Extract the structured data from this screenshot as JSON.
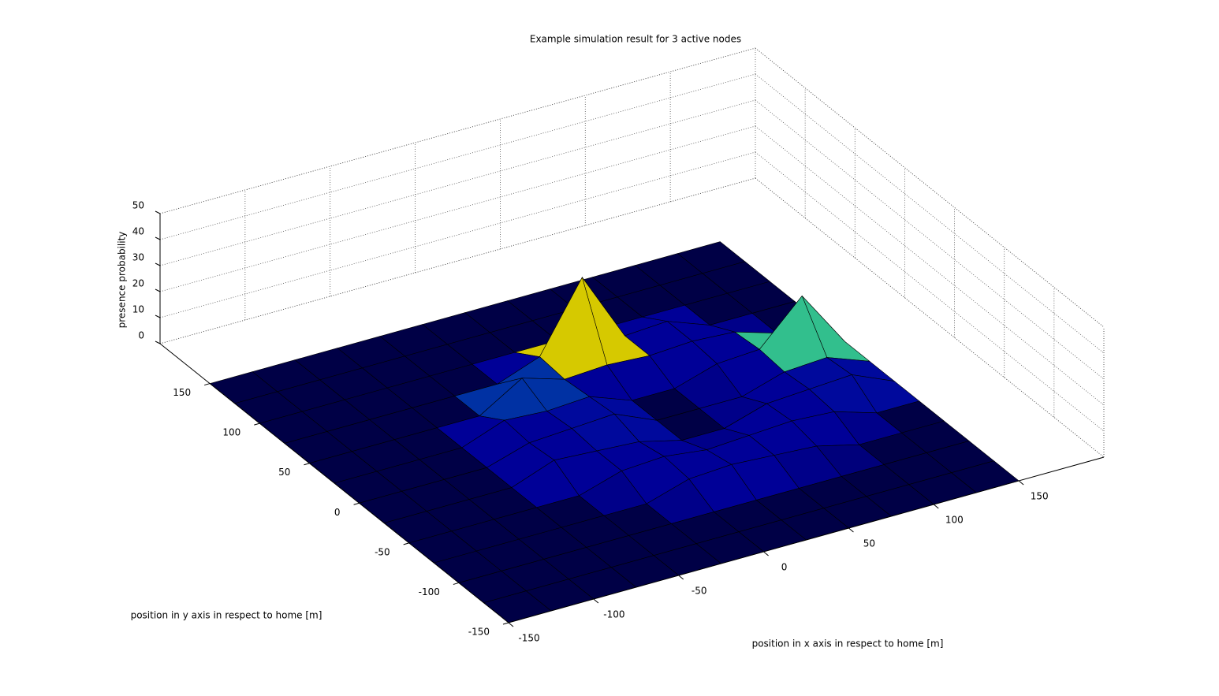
{
  "chart_data": {
    "type": "surface3d",
    "title": "Example simulation result for 3 active nodes",
    "xlabel": "position in x axis in respect to home [m]",
    "ylabel": "position in y axis in respect to home [m]",
    "zlabel": "presence probability",
    "x": [
      -150,
      -125,
      -100,
      -75,
      -50,
      -25,
      0,
      25,
      50,
      75,
      100,
      125,
      150
    ],
    "y": [
      -150,
      -125,
      -100,
      -75,
      -50,
      -25,
      0,
      25,
      50,
      75,
      100,
      125,
      150
    ],
    "z": [
      [
        0,
        0,
        0,
        0,
        0,
        0,
        0,
        0,
        0,
        0,
        0,
        0,
        0
      ],
      [
        0,
        0,
        0,
        0,
        0,
        0,
        0,
        0,
        0,
        0,
        0,
        0,
        0
      ],
      [
        0,
        0,
        0,
        0,
        0,
        0,
        0,
        0,
        0,
        0,
        0,
        0,
        0
      ],
      [
        0,
        0,
        0,
        0,
        0,
        0,
        5,
        6,
        5,
        4,
        0,
        0,
        0
      ],
      [
        0,
        0,
        0,
        0,
        0,
        5,
        6,
        4,
        5,
        6,
        5,
        0,
        0
      ],
      [
        0,
        0,
        0,
        0,
        6,
        5,
        4,
        0,
        0,
        5,
        6,
        7,
        0
      ],
      [
        0,
        0,
        0,
        0,
        5,
        6,
        7,
        0,
        0,
        0,
        5,
        6,
        0
      ],
      [
        0,
        0,
        0,
        0,
        6,
        5,
        6,
        0,
        0,
        5,
        6,
        22,
        0
      ],
      [
        0,
        0,
        0,
        0,
        0,
        10,
        5,
        6,
        5,
        6,
        5,
        0,
        0
      ],
      [
        0,
        0,
        0,
        0,
        0,
        0,
        6,
        32,
        5,
        6,
        0,
        0,
        0
      ],
      [
        0,
        0,
        0,
        0,
        0,
        0,
        0,
        0,
        0,
        0,
        0,
        0,
        0
      ],
      [
        0,
        0,
        0,
        0,
        0,
        0,
        0,
        0,
        0,
        0,
        0,
        0,
        0
      ],
      [
        0,
        0,
        0,
        0,
        0,
        0,
        0,
        0,
        0,
        0,
        0,
        0,
        0
      ]
    ],
    "colormap": "jet",
    "xlim": [
      -150,
      200
    ],
    "ylim": [
      -150,
      200
    ],
    "zlim": [
      0,
      50
    ],
    "xticks": [
      -150,
      -100,
      -50,
      0,
      50,
      100,
      150
    ],
    "yticks": [
      -150,
      -100,
      -50,
      0,
      50,
      100,
      150
    ],
    "zticks": [
      0,
      10,
      20,
      30,
      40,
      50
    ],
    "grid": true
  }
}
